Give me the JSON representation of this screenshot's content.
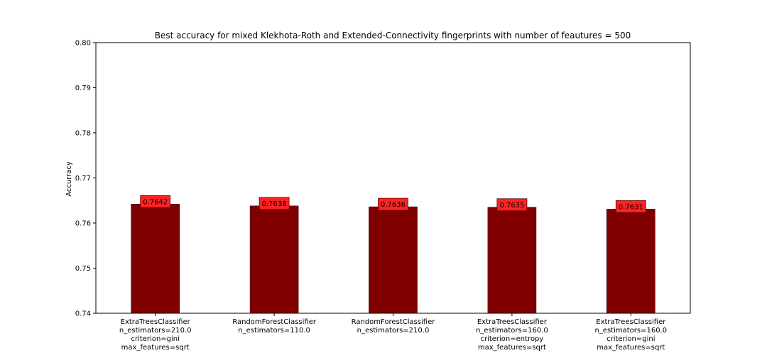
{
  "chart_data": {
    "type": "bar",
    "title": "Best accuracy for mixed Klekhota-Roth and Extended-Connectivity fingerprints with number of feautures = 500",
    "xlabel": "",
    "ylabel": "Accurracy",
    "ylim": [
      0.74,
      0.8
    ],
    "yticks": [
      "0.74",
      "0.75",
      "0.76",
      "0.77",
      "0.78",
      "0.79",
      "0.80"
    ],
    "grid": false,
    "bar_color": "#800000",
    "label_box_color": "#ff2222",
    "categories": [
      [
        "ExtraTreesClassifier",
        "n_estimators=210.0",
        "criterion=gini",
        "max_features=sqrt"
      ],
      [
        "RandomForestClassifier",
        "n_estimators=110.0"
      ],
      [
        "RandomForestClassifier",
        "n_estimators=210.0"
      ],
      [
        "ExtraTreesClassifier",
        "n_estimators=160.0",
        "criterion=entropy",
        "max_features=sqrt"
      ],
      [
        "ExtraTreesClassifier",
        "n_estimators=160.0",
        "criterion=gini",
        "max_features=sqrt"
      ]
    ],
    "values": [
      0.7642,
      0.7638,
      0.7636,
      0.7635,
      0.7631
    ],
    "value_labels": [
      "0.7642",
      "0.7638",
      "0.7636",
      "0.7635",
      "0.7631"
    ]
  }
}
